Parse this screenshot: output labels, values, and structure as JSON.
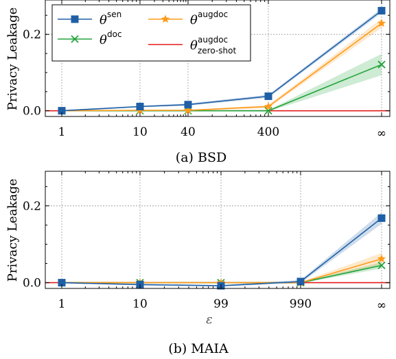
{
  "chart_data": [
    {
      "type": "line",
      "caption": "(a) BSD",
      "ylabel": "Privacy Leakage",
      "xlabel": "",
      "categories": [
        "1",
        "10",
        "40",
        "400",
        "∞"
      ],
      "yticks": [
        "0.0",
        "0.2"
      ],
      "ylim": [
        -0.015,
        0.29
      ],
      "grid": true,
      "legend": {
        "position": "top-left",
        "entries": [
          {
            "series": "sen",
            "base": "θ",
            "sup": "sen",
            "sub": ""
          },
          {
            "series": "doc",
            "base": "θ",
            "sup": "doc",
            "sub": ""
          },
          {
            "series": "augdoc",
            "base": "θ",
            "sup": "augdoc",
            "sub": ""
          },
          {
            "series": "zeroshot",
            "base": "θ",
            "sup": "augdoc",
            "sub": "zero-shot"
          }
        ]
      },
      "series": [
        {
          "key": "sen",
          "color": "#1f5fa6",
          "marker": "square",
          "values": [
            0.0,
            0.011,
            0.016,
            0.038,
            0.262
          ],
          "band": [
            0.002,
            0.002,
            0.003,
            0.004,
            0.006
          ]
        },
        {
          "key": "augdoc",
          "color": "#ff9a1a",
          "marker": "star",
          "values": [
            0.0,
            0.001,
            0.001,
            0.011,
            0.229
          ],
          "band": [
            0.001,
            0.001,
            0.001,
            0.004,
            0.012
          ]
        },
        {
          "key": "doc",
          "color": "#22a33a",
          "marker": "x",
          "values": [
            0.0,
            0.0,
            0.0,
            0.0,
            0.121
          ],
          "band": [
            0.001,
            0.001,
            0.001,
            0.002,
            0.028
          ]
        },
        {
          "key": "zeroshot",
          "color": "#e31a1a",
          "marker": "none",
          "values": [
            0.0,
            0.0,
            0.0,
            0.0,
            0.0
          ],
          "band": [
            0,
            0,
            0,
            0,
            0
          ]
        }
      ]
    },
    {
      "type": "line",
      "caption": "(b) MAIA",
      "ylabel": "Privacy Leakage",
      "xlabel": "ε",
      "categories": [
        "1",
        "10",
        "99",
        "990",
        "∞"
      ],
      "yticks": [
        "0.0",
        "0.2"
      ],
      "ylim": [
        -0.015,
        0.29
      ],
      "grid": true,
      "series": [
        {
          "key": "sen",
          "color": "#1f5fa6",
          "marker": "square",
          "values": [
            0.0,
            -0.005,
            -0.008,
            0.003,
            0.168
          ],
          "band": [
            0.002,
            0.002,
            0.002,
            0.004,
            0.015
          ]
        },
        {
          "key": "augdoc",
          "color": "#ff9a1a",
          "marker": "star",
          "values": [
            0.0,
            0.0,
            0.0,
            0.0,
            0.062
          ],
          "band": [
            0.001,
            0.001,
            0.001,
            0.002,
            0.015
          ]
        },
        {
          "key": "doc",
          "color": "#22a33a",
          "marker": "x",
          "values": [
            0.0,
            0.0,
            0.0,
            0.0,
            0.045
          ],
          "band": [
            0.001,
            0.001,
            0.001,
            0.002,
            0.008
          ]
        },
        {
          "key": "zeroshot",
          "color": "#e31a1a",
          "marker": "none",
          "values": [
            0.0,
            0.0,
            0.0,
            0.0,
            0.0
          ],
          "band": [
            0,
            0,
            0,
            0,
            0
          ]
        }
      ]
    }
  ]
}
